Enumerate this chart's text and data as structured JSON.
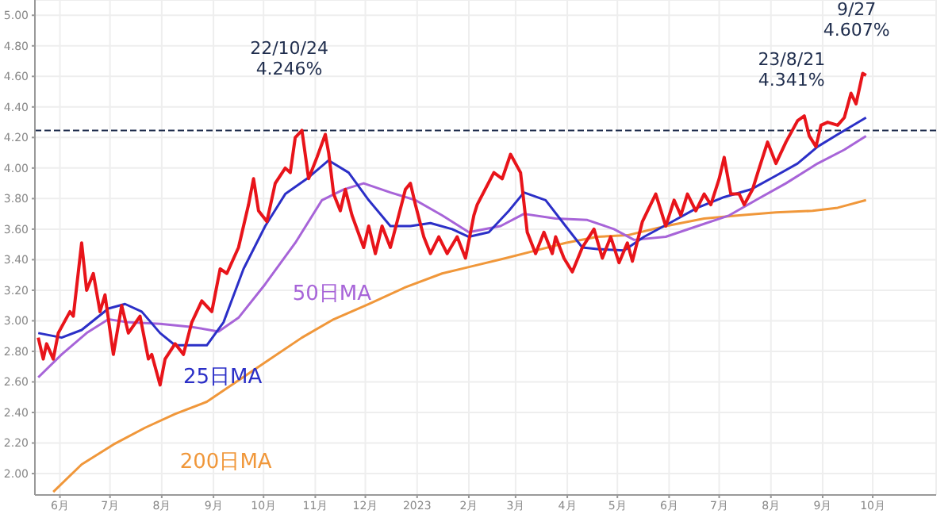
{
  "chart_data": {
    "type": "line",
    "xlim": [
      "2022-05-17",
      "2023-11-08"
    ],
    "ylim": [
      1.86,
      5.1
    ],
    "xticks": [
      {
        "value": "2022-06-01",
        "label": "6月"
      },
      {
        "value": "2022-07-01",
        "label": "7月"
      },
      {
        "value": "2022-08-01",
        "label": "8月"
      },
      {
        "value": "2022-09-01",
        "label": "9月"
      },
      {
        "value": "2022-10-01",
        "label": "10月"
      },
      {
        "value": "2022-11-01",
        "label": "11月"
      },
      {
        "value": "2022-12-01",
        "label": "12月"
      },
      {
        "value": "2023-01-01",
        "label": "2023"
      },
      {
        "value": "2023-02-01",
        "label": "2月"
      },
      {
        "value": "2023-03-01",
        "label": "3月"
      },
      {
        "value": "2023-04-01",
        "label": "4月"
      },
      {
        "value": "2023-05-01",
        "label": "5月"
      },
      {
        "value": "2023-06-01",
        "label": "6月"
      },
      {
        "value": "2023-07-01",
        "label": "7月"
      },
      {
        "value": "2023-08-01",
        "label": "8月"
      },
      {
        "value": "2023-09-01",
        "label": "9月"
      },
      {
        "value": "2023-10-01",
        "label": "10月"
      }
    ],
    "yticks": [
      {
        "value": 2,
        "label": "2.00"
      },
      {
        "value": 2.2,
        "label": "2.20"
      },
      {
        "value": 2.4,
        "label": "2.40"
      },
      {
        "value": 2.6,
        "label": "2.60"
      },
      {
        "value": 2.8,
        "label": "2.80"
      },
      {
        "value": 3,
        "label": "3.00"
      },
      {
        "value": 3.2,
        "label": "3.20"
      },
      {
        "value": 3.4,
        "label": "3.40"
      },
      {
        "value": 3.6,
        "label": "3.60"
      },
      {
        "value": 3.8,
        "label": "3.80"
      },
      {
        "value": 4,
        "label": "4.00"
      },
      {
        "value": 4.2,
        "label": "4.20"
      },
      {
        "value": 4.4,
        "label": "4.40"
      },
      {
        "value": 4.6,
        "label": "4.60"
      },
      {
        "value": 4.8,
        "label": "4.80"
      },
      {
        "value": 5,
        "label": "5.00"
      }
    ],
    "grid": true,
    "legend": false,
    "marker": "none",
    "line_style": "solid",
    "series": [
      {
        "color": "#e8141a",
        "x": [
          "2022-05-19",
          "2022-05-22",
          "2022-05-24",
          "2022-05-28",
          "2022-05-31",
          "2022-06-07",
          "2022-06-09",
          "2022-06-14",
          "2022-06-17",
          "2022-06-21",
          "2022-06-25",
          "2022-06-28",
          "2022-07-03",
          "2022-07-08",
          "2022-07-12",
          "2022-07-19",
          "2022-07-24",
          "2022-07-26",
          "2022-07-31",
          "2022-08-03",
          "2022-08-09",
          "2022-08-14",
          "2022-08-19",
          "2022-08-25",
          "2022-08-31",
          "2022-09-05",
          "2022-09-09",
          "2022-09-16",
          "2022-09-22",
          "2022-09-25",
          "2022-09-28",
          "2022-10-03",
          "2022-10-08",
          "2022-10-14",
          "2022-10-17",
          "2022-10-20",
          "2022-10-24",
          "2022-10-28",
          "2022-11-02",
          "2022-11-07",
          "2022-11-09",
          "2022-11-12",
          "2022-11-16",
          "2022-11-19",
          "2022-11-23",
          "2022-11-30",
          "2022-12-03",
          "2022-12-07",
          "2022-12-11",
          "2022-12-16",
          "2022-12-21",
          "2022-12-25",
          "2022-12-28",
          "2022-12-31",
          "2023-01-05",
          "2023-01-09",
          "2023-01-14",
          "2023-01-19",
          "2023-01-25",
          "2023-01-30",
          "2023-02-04",
          "2023-02-06",
          "2023-02-16",
          "2023-02-21",
          "2023-02-26",
          "2023-03-04",
          "2023-03-08",
          "2023-03-13",
          "2023-03-18",
          "2023-03-23",
          "2023-03-25",
          "2023-03-30",
          "2023-04-04",
          "2023-04-10",
          "2023-04-17",
          "2023-04-22",
          "2023-04-27",
          "2023-05-02",
          "2023-05-07",
          "2023-05-10",
          "2023-05-16",
          "2023-05-24",
          "2023-05-30",
          "2023-06-04",
          "2023-06-08",
          "2023-06-12",
          "2023-06-17",
          "2023-06-22",
          "2023-06-26",
          "2023-07-01",
          "2023-07-04",
          "2023-07-08",
          "2023-07-13",
          "2023-07-16",
          "2023-07-21",
          "2023-07-25",
          "2023-07-30",
          "2023-08-04",
          "2023-08-10",
          "2023-08-17",
          "2023-08-21",
          "2023-08-24",
          "2023-08-28",
          "2023-08-31",
          "2023-09-04",
          "2023-09-10",
          "2023-09-14",
          "2023-09-18",
          "2023-09-21",
          "2023-09-25",
          "2023-09-27"
        ],
        "values": [
          2.89,
          2.75,
          2.85,
          2.75,
          2.92,
          3.06,
          3.03,
          3.51,
          3.2,
          3.31,
          3.06,
          3.17,
          2.78,
          3.1,
          2.92,
          3.03,
          2.75,
          2.78,
          2.58,
          2.75,
          2.85,
          2.78,
          2.99,
          3.13,
          3.06,
          3.34,
          3.31,
          3.48,
          3.76,
          3.93,
          3.72,
          3.65,
          3.9,
          4.0,
          3.97,
          4.2,
          4.246,
          3.93,
          4.07,
          4.22,
          4.1,
          3.83,
          3.72,
          3.86,
          3.69,
          3.48,
          3.62,
          3.44,
          3.62,
          3.48,
          3.69,
          3.86,
          3.9,
          3.76,
          3.55,
          3.44,
          3.55,
          3.44,
          3.55,
          3.41,
          3.69,
          3.76,
          3.97,
          3.93,
          4.09,
          3.97,
          3.58,
          3.44,
          3.58,
          3.44,
          3.55,
          3.41,
          3.32,
          3.48,
          3.6,
          3.41,
          3.55,
          3.38,
          3.51,
          3.39,
          3.65,
          3.83,
          3.62,
          3.79,
          3.69,
          3.83,
          3.72,
          3.83,
          3.76,
          3.93,
          4.07,
          3.83,
          3.83,
          3.76,
          3.86,
          4.0,
          4.17,
          4.03,
          4.17,
          4.31,
          4.341,
          4.21,
          4.14,
          4.28,
          4.3,
          4.28,
          4.33,
          4.49,
          4.42,
          4.62,
          4.607
        ]
      },
      {
        "name": "25日MA",
        "color": "#2b2fc7",
        "x": [
          "2022-05-19",
          "2022-06-02",
          "2022-06-14",
          "2022-06-30",
          "2022-07-10",
          "2022-07-20",
          "2022-07-31",
          "2022-08-09",
          "2022-08-28",
          "2022-09-07",
          "2022-09-19",
          "2022-10-02",
          "2022-10-14",
          "2022-10-27",
          "2022-11-09",
          "2022-11-21",
          "2022-12-03",
          "2022-12-16",
          "2022-12-28",
          "2023-01-09",
          "2023-01-22",
          "2023-02-01",
          "2023-02-13",
          "2023-02-25",
          "2023-03-06",
          "2023-03-19",
          "2023-03-31",
          "2023-04-10",
          "2023-04-19",
          "2023-05-05",
          "2023-05-17",
          "2023-06-03",
          "2023-06-18",
          "2023-07-04",
          "2023-07-20",
          "2023-08-04",
          "2023-08-17",
          "2023-08-29",
          "2023-09-10",
          "2023-09-27"
        ],
        "values": [
          2.92,
          2.89,
          2.94,
          3.08,
          3.11,
          3.06,
          2.92,
          2.84,
          2.84,
          2.99,
          3.34,
          3.62,
          3.83,
          3.93,
          4.05,
          3.97,
          3.79,
          3.62,
          3.62,
          3.64,
          3.6,
          3.55,
          3.58,
          3.72,
          3.84,
          3.79,
          3.62,
          3.48,
          3.47,
          3.46,
          3.55,
          3.65,
          3.74,
          3.81,
          3.86,
          3.95,
          4.03,
          4.14,
          4.22,
          4.33
        ]
      },
      {
        "name": "50日MA",
        "color": "#a764d8",
        "x": [
          "2022-05-19",
          "2022-06-02",
          "2022-06-17",
          "2022-06-30",
          "2022-07-12",
          "2022-07-31",
          "2022-08-19",
          "2022-09-04",
          "2022-09-16",
          "2022-10-02",
          "2022-10-20",
          "2022-11-05",
          "2022-11-18",
          "2022-11-30",
          "2022-12-16",
          "2022-12-31",
          "2023-01-16",
          "2023-02-01",
          "2023-02-20",
          "2023-03-06",
          "2023-03-25",
          "2023-04-13",
          "2023-04-29",
          "2023-05-11",
          "2023-05-30",
          "2023-06-18",
          "2023-07-07",
          "2023-07-23",
          "2023-08-10",
          "2023-08-29",
          "2023-09-14",
          "2023-09-27"
        ],
        "values": [
          2.63,
          2.78,
          2.92,
          3.01,
          2.99,
          2.98,
          2.96,
          2.93,
          3.02,
          3.24,
          3.51,
          3.79,
          3.86,
          3.9,
          3.84,
          3.79,
          3.69,
          3.58,
          3.62,
          3.7,
          3.67,
          3.66,
          3.6,
          3.53,
          3.55,
          3.62,
          3.69,
          3.79,
          3.9,
          4.03,
          4.12,
          4.21
        ]
      },
      {
        "name": "200日MA",
        "color": "#f0973a",
        "x": [
          "2022-05-28",
          "2022-06-14",
          "2022-07-03",
          "2022-07-22",
          "2022-08-09",
          "2022-08-28",
          "2022-09-16",
          "2022-10-05",
          "2022-10-24",
          "2022-11-12",
          "2022-12-03",
          "2022-12-25",
          "2023-01-16",
          "2023-02-04",
          "2023-02-23",
          "2023-03-13",
          "2023-03-31",
          "2023-04-19",
          "2023-05-07",
          "2023-05-30",
          "2023-06-22",
          "2023-07-13",
          "2023-08-04",
          "2023-08-26",
          "2023-09-10",
          "2023-09-27"
        ],
        "values": [
          1.88,
          2.06,
          2.19,
          2.3,
          2.39,
          2.47,
          2.61,
          2.75,
          2.89,
          3.01,
          3.11,
          3.22,
          3.31,
          3.36,
          3.41,
          3.46,
          3.51,
          3.55,
          3.56,
          3.62,
          3.67,
          3.69,
          3.71,
          3.72,
          3.74,
          3.79
        ]
      }
    ],
    "ref_lines": [
      {
        "axis": "y",
        "value": 4.246,
        "color": "#1f2d4d",
        "line_style": "dashed"
      }
    ],
    "annotations": [
      {
        "text": "22/10/24\n4.246%",
        "x": "2022-10-24",
        "y": 4.246
      },
      {
        "text": "23/8/21\n4.341%",
        "x": "2023-08-21",
        "y": 4.341
      },
      {
        "text": "9/27\n4.607%",
        "x": "2023-09-27",
        "y": 4.607
      }
    ]
  }
}
